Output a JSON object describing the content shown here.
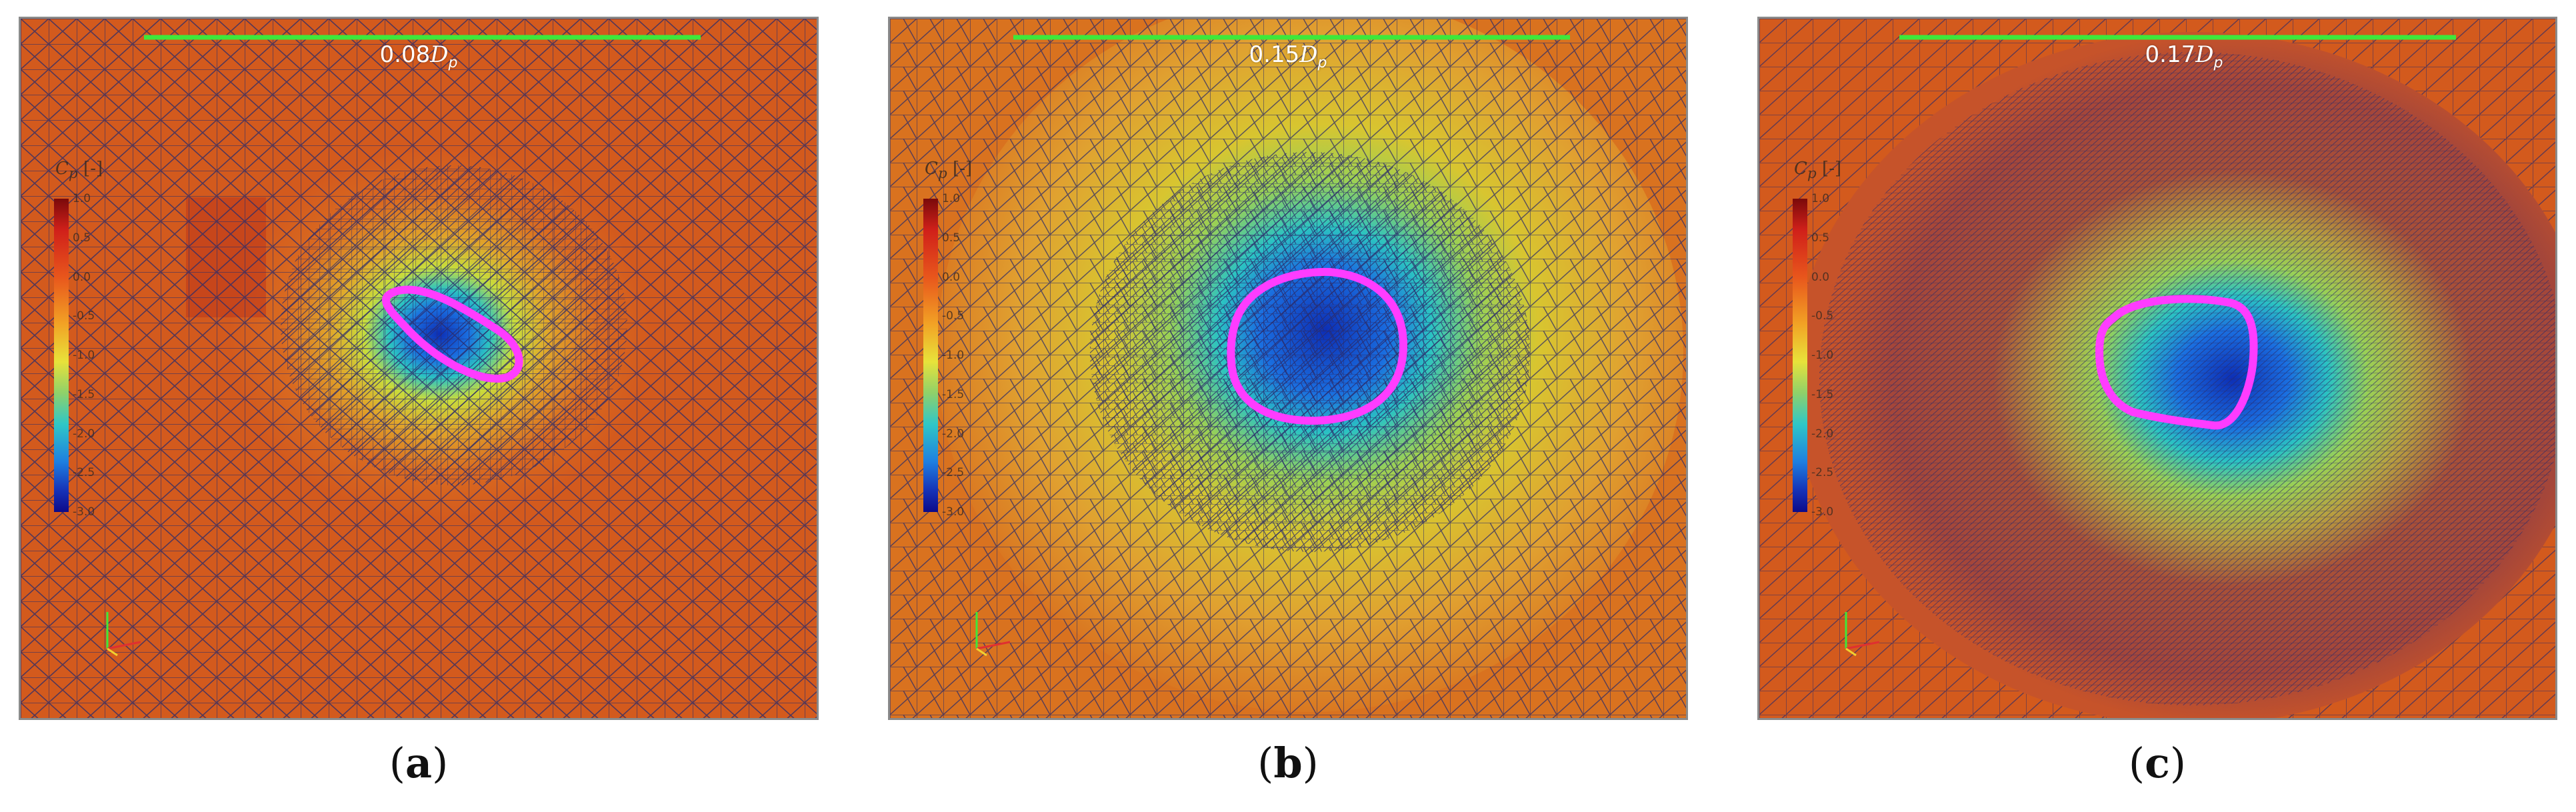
{
  "colorbar": {
    "title": "C",
    "title_sub": "p",
    "unit": "[-]",
    "ticks": [
      "1.0",
      "0.5",
      "0.0",
      "-0.5",
      "-1.0",
      "-1.5",
      "-2.0",
      "-2.5",
      "-3.0"
    ]
  },
  "panels": [
    {
      "id": "a",
      "scale_value": "0.08",
      "scale_symbol": "D",
      "scale_sub": "p",
      "caption_letter": "a"
    },
    {
      "id": "b",
      "scale_value": "0.15",
      "scale_symbol": "D",
      "scale_sub": "p",
      "caption_letter": "b"
    },
    {
      "id": "c",
      "scale_value": "0.17",
      "scale_symbol": "D",
      "scale_sub": "p",
      "caption_letter": "c"
    }
  ],
  "colors": {
    "background_field": "#d35a1d",
    "mesh_line": "#2a2a6a",
    "contour_outline": "#ff3cff",
    "scale_bar": "#3ee83a"
  }
}
